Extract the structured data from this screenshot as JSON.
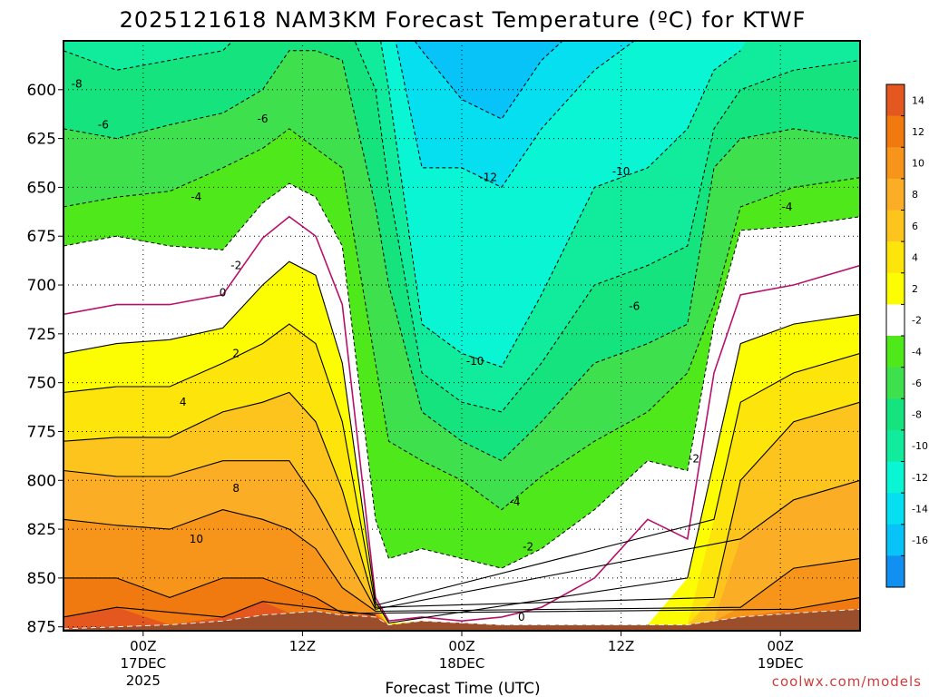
{
  "chart_data": {
    "type": "heatmap",
    "title": "2025121618 NAM3KM Forecast Temperature (ºC) for KTWF",
    "xlabel": "Forecast Time (UTC)",
    "ylabel": "",
    "y_ticks": [
      600,
      625,
      650,
      675,
      700,
      725,
      750,
      775,
      800,
      825,
      850,
      875
    ],
    "ylim": [
      575,
      877
    ],
    "x_ticks": [
      {
        "hour": 6,
        "label": "00Z",
        "sub": "17DEC",
        "year": "2025"
      },
      {
        "hour": 18,
        "label": "12Z",
        "sub": "",
        "year": ""
      },
      {
        "hour": 30,
        "label": "00Z",
        "sub": "18DEC",
        "year": ""
      },
      {
        "hour": 42,
        "label": "12Z",
        "sub": "",
        "year": ""
      },
      {
        "hour": 54,
        "label": "00Z",
        "sub": "19DEC",
        "year": ""
      }
    ],
    "xlim": [
      0,
      60
    ],
    "colorbar": {
      "labels": [
        "14",
        "12",
        "10",
        "8",
        "6",
        "4",
        "2",
        "-2",
        "-4",
        "-6",
        "-8",
        "-10",
        "-12",
        "-14",
        "-16"
      ],
      "bands": [
        {
          "lo": 14,
          "hi": 16,
          "color": "#e4571e"
        },
        {
          "lo": 12,
          "hi": 14,
          "color": "#f07a10"
        },
        {
          "lo": 10,
          "hi": 12,
          "color": "#f7951a"
        },
        {
          "lo": 8,
          "hi": 10,
          "color": "#fbad26"
        },
        {
          "lo": 6,
          "hi": 8,
          "color": "#fcc41d"
        },
        {
          "lo": 4,
          "hi": 6,
          "color": "#fde40b"
        },
        {
          "lo": 2,
          "hi": 4,
          "color": "#fcfd03"
        },
        {
          "lo": -2,
          "hi": 2,
          "color": "#ffffff"
        },
        {
          "lo": -4,
          "hi": -2,
          "color": "#4fe81b"
        },
        {
          "lo": -6,
          "hi": -4,
          "color": "#3fe04e"
        },
        {
          "lo": -8,
          "hi": -6,
          "color": "#15e37e"
        },
        {
          "lo": -10,
          "hi": -8,
          "color": "#10ec9c"
        },
        {
          "lo": -12,
          "hi": -10,
          "color": "#09f5d3"
        },
        {
          "lo": -14,
          "hi": -12,
          "color": "#05dff0"
        },
        {
          "lo": -16,
          "hi": -14,
          "color": "#07c3f7"
        },
        {
          "lo": -18,
          "hi": -16,
          "color": "#1190f2"
        }
      ]
    },
    "contour_labels": [
      {
        "text": "-8",
        "hour": 1.0,
        "p": 597
      },
      {
        "text": "-6",
        "hour": 3.0,
        "p": 618
      },
      {
        "text": "-6",
        "hour": 15.0,
        "p": 615
      },
      {
        "text": "-4",
        "hour": 10.0,
        "p": 655
      },
      {
        "text": "-2",
        "hour": 13.0,
        "p": 690
      },
      {
        "text": "0",
        "hour": 12.0,
        "p": 704
      },
      {
        "text": "2",
        "hour": 13.0,
        "p": 735
      },
      {
        "text": "4",
        "hour": 9.0,
        "p": 760
      },
      {
        "text": "8",
        "hour": 13.0,
        "p": 804
      },
      {
        "text": "10",
        "hour": 10.0,
        "p": 830
      },
      {
        "text": "-12",
        "hour": 32.0,
        "p": 645
      },
      {
        "text": "-10",
        "hour": 42.0,
        "p": 642
      },
      {
        "text": "-10",
        "hour": 31.0,
        "p": 739
      },
      {
        "text": "-6",
        "hour": 43.0,
        "p": 711
      },
      {
        "text": "-4",
        "hour": 54.5,
        "p": 660
      },
      {
        "text": "-4",
        "hour": 34.0,
        "p": 811
      },
      {
        "text": "-2",
        "hour": 35.0,
        "p": 834
      },
      {
        "text": "-2",
        "hour": 47.5,
        "p": 789
      },
      {
        "text": "0",
        "hour": 34.5,
        "p": 870
      }
    ],
    "columns": [
      {
        "hour": 0,
        "isotherms": {
          "-8": 580,
          "-6": 620,
          "-4": 660,
          "-2": 680,
          "0": 715,
          "2": 735,
          "4": 755,
          "6": 780,
          "8": 795,
          "10": 820,
          "12": 850,
          "14": 870
        },
        "sfc": 876
      },
      {
        "hour": 4,
        "isotherms": {
          "-8": 590,
          "-6": 625,
          "-4": 655,
          "-2": 675,
          "0": 710,
          "2": 730,
          "4": 752,
          "6": 778,
          "8": 798,
          "10": 823,
          "12": 850,
          "14": 865
        },
        "sfc": 875
      },
      {
        "hour": 8,
        "isotherms": {
          "-8": 585,
          "-6": 618,
          "-4": 652,
          "-2": 680,
          "0": 710,
          "2": 728,
          "4": 752,
          "6": 778,
          "8": 798,
          "10": 825,
          "12": 860,
          "14": 874
        },
        "sfc": 874
      },
      {
        "hour": 12,
        "isotherms": {
          "-8": 580,
          "-6": 612,
          "-4": 640,
          "-2": 682,
          "0": 705,
          "2": 722,
          "4": 740,
          "6": 765,
          "8": 790,
          "10": 815,
          "12": 850,
          "14": 870
        },
        "sfc": 872
      },
      {
        "hour": 15,
        "isotherms": {
          "-8": 560,
          "-6": 600,
          "-4": 630,
          "-2": 658,
          "0": 676,
          "2": 700,
          "4": 730,
          "6": 760,
          "8": 790,
          "10": 820,
          "12": 850,
          "14": 862
        },
        "sfc": 869
      },
      {
        "hour": 17,
        "isotherms": {
          "-8": 555,
          "-6": 580,
          "-4": 620,
          "-2": 648,
          "0": 665,
          "2": 688,
          "4": 720,
          "6": 755,
          "8": 790,
          "10": 825,
          "12": 855,
          "14": 868
        },
        "sfc": 868
      },
      {
        "hour": 19,
        "isotherms": {
          "-8": 560,
          "-6": 580,
          "-4": 630,
          "-2": 655,
          "0": 675,
          "2": 695,
          "4": 730,
          "6": 770,
          "8": 810,
          "10": 835,
          "12": 860,
          "14": 867
        },
        "sfc": 867
      },
      {
        "hour": 21,
        "isotherms": {
          "-8": 560,
          "-6": 585,
          "-4": 640,
          "-2": 680,
          "0": 710,
          "2": 740,
          "4": 770,
          "6": 805,
          "8": 835,
          "10": 855,
          "12": 868,
          "14": 869
        },
        "sfc": 869
      },
      {
        "hour": 23.5,
        "isotherms": {
          "-16": 556,
          "-14": 557,
          "-12": 558,
          "-10": 559,
          "-8": 600,
          "-6": 660,
          "-4": 740,
          "-2": 820,
          "0": 860,
          "2": 862,
          "4": 864,
          "6": 865,
          "8": 866,
          "10": 867,
          "12": 868,
          "14": 869
        },
        "sfc": 870
      },
      {
        "hour": 24.5,
        "isotherms": {
          "-16": 556,
          "-14": 557,
          "-12": 558,
          "-10": 600,
          "-8": 650,
          "-6": 700,
          "-4": 780,
          "-2": 840,
          "0": 872,
          "2": 873
        },
        "sfc": 874
      },
      {
        "hour": 27,
        "isotherms": {
          "-16": 556,
          "-14": 580,
          "-12": 640,
          "-10": 720,
          "-8": 745,
          "-6": 765,
          "-4": 790,
          "-2": 835,
          "0": 870
        },
        "sfc": 872
      },
      {
        "hour": 30,
        "isotherms": {
          "-16": 575,
          "-14": 605,
          "-12": 640,
          "-10": 735,
          "-8": 760,
          "-6": 780,
          "-4": 800,
          "-2": 840,
          "0": 872
        },
        "sfc": 873
      },
      {
        "hour": 33,
        "isotherms": {
          "-16": 568,
          "-14": 615,
          "-12": 650,
          "-10": 742,
          "-8": 765,
          "-6": 790,
          "-4": 815,
          "-2": 845,
          "0": 870
        },
        "sfc": 874
      },
      {
        "hour": 36,
        "isotherms": {
          "-16": 560,
          "-14": 585,
          "-12": 620,
          "-10": 705,
          "-8": 740,
          "-6": 770,
          "-4": 798,
          "-2": 835,
          "0": 865
        },
        "sfc": 874
      },
      {
        "hour": 40,
        "isotherms": {
          "-16": 555,
          "-14": 560,
          "-12": 590,
          "-10": 650,
          "-8": 700,
          "-6": 740,
          "-4": 780,
          "-2": 815,
          "0": 850
        },
        "sfc": 874
      },
      {
        "hour": 44,
        "isotherms": {
          "-16": 555,
          "-14": 556,
          "-12": 570,
          "-10": 640,
          "-8": 690,
          "-6": 730,
          "-4": 765,
          "-2": 790,
          "0": 820
        },
        "sfc": 874
      },
      {
        "hour": 47,
        "isotherms": {
          "-12": 560,
          "-10": 620,
          "-8": 680,
          "-6": 720,
          "-4": 745,
          "-2": 795,
          "0": 830,
          "2": 850
        },
        "sfc": 874
      },
      {
        "hour": 49,
        "isotherms": {
          "-10": 590,
          "-8": 620,
          "-6": 640,
          "-4": 710,
          "-2": 720,
          "0": 745,
          "2": 790,
          "4": 820,
          "6": 860
        },
        "sfc": 872
      },
      {
        "hour": 51,
        "isotherms": {
          "-10": 580,
          "-8": 600,
          "-6": 625,
          "-4": 660,
          "-2": 672,
          "0": 705,
          "2": 730,
          "4": 760,
          "6": 800,
          "8": 830,
          "10": 865
        },
        "sfc": 870
      },
      {
        "hour": 55,
        "isotherms": {
          "-8": 590,
          "-6": 620,
          "-4": 650,
          "-2": 670,
          "0": 700,
          "2": 720,
          "4": 745,
          "6": 770,
          "8": 810,
          "10": 845,
          "12": 866
        },
        "sfc": 868
      },
      {
        "hour": 60,
        "isotherms": {
          "-8": 585,
          "-6": 625,
          "-4": 645,
          "-2": 665,
          "0": 690,
          "2": 715,
          "4": 735,
          "6": 760,
          "8": 800,
          "10": 840,
          "12": 860
        },
        "sfc": 866
      }
    ]
  },
  "credit": "coolwx.com/models"
}
